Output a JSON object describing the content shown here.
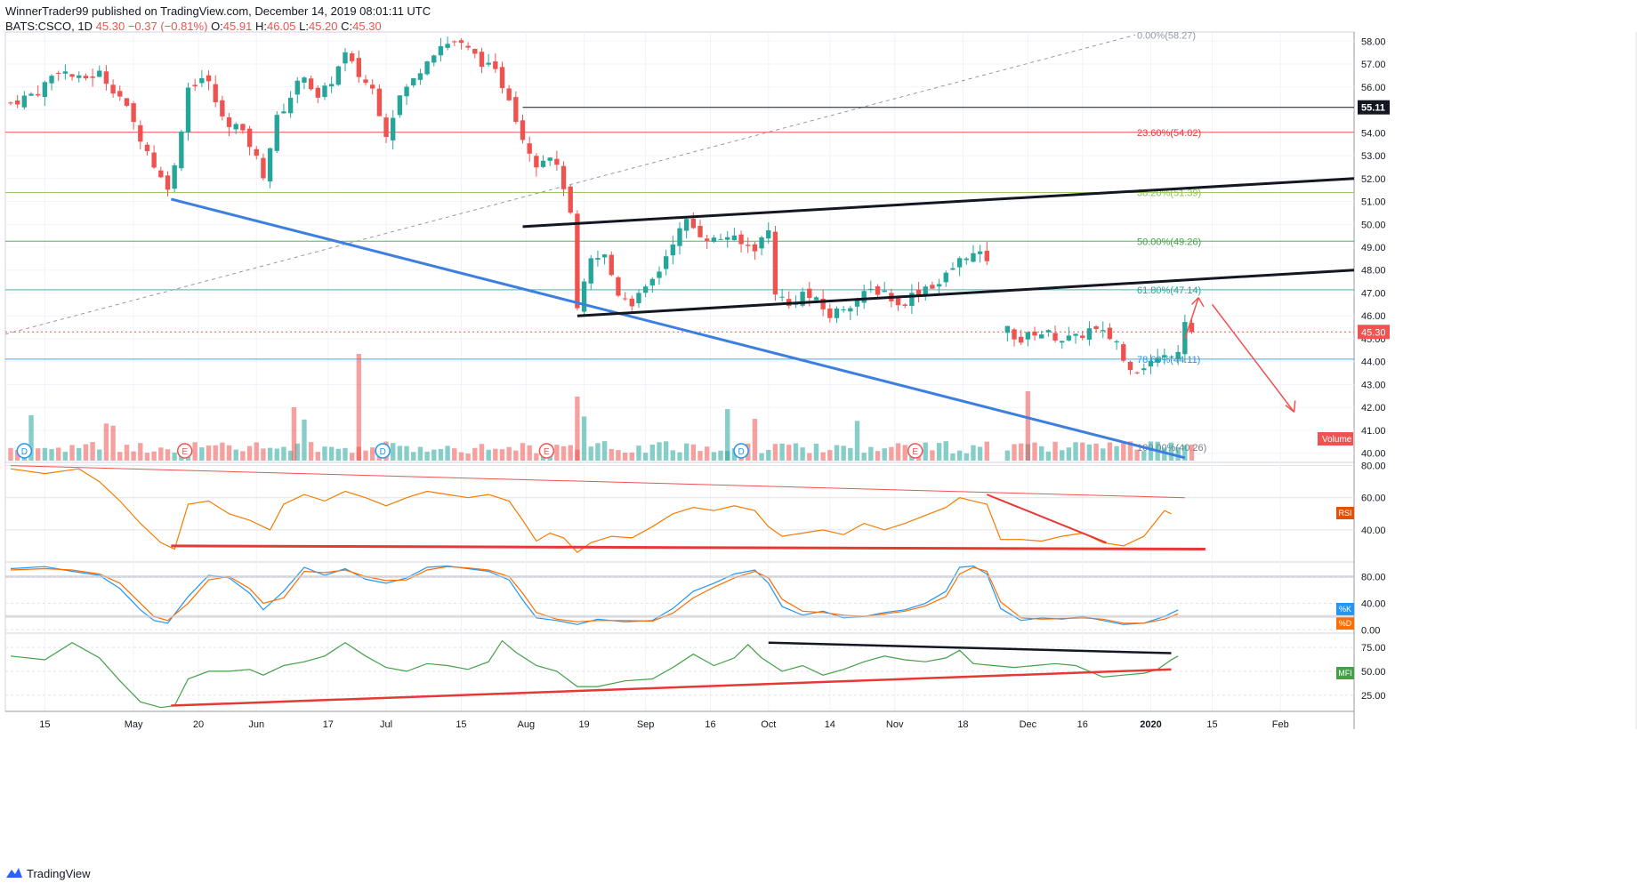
{
  "header": {
    "publisher": "WinnerTrader99 published on TradingView.com, December 14, 2019 08:01:11 UTC",
    "symbol": "BATS:CSCO, 1D",
    "last": "45.30",
    "change": "−0.37 (−0.81%)",
    "o_label": "O:",
    "o_value": "45.91",
    "h_label": "H:",
    "h_value": "46.05",
    "l_label": "L:",
    "l_value": "45.20",
    "c_label": "C:",
    "c_value": "45.30"
  },
  "brand": {
    "name": "TradingView",
    "icon": "tradingview-logo-icon"
  },
  "colors": {
    "up": "#26a69a",
    "down": "#ef5350",
    "grid": "#f0f3fa",
    "text": "#131722",
    "blue_line": "#3d7fe0"
  },
  "chart_data": {
    "type": "candlestick",
    "price_axis": {
      "range": [
        39.6,
        58.4
      ],
      "ticks": [
        "58.00",
        "57.00",
        "56.00",
        "55.00",
        "54.00",
        "53.00",
        "52.00",
        "51.00",
        "50.00",
        "49.00",
        "48.00",
        "47.00",
        "46.00",
        "45.00",
        "44.00",
        "43.00",
        "42.00",
        "41.00",
        "40.00"
      ],
      "last_price_label": "45.30",
      "marked_level_label": "55.11"
    },
    "x_axis": {
      "ticks": [
        "15",
        "May",
        "20",
        "Jun",
        "17",
        "Jul",
        "15",
        "Aug",
        "19",
        "Sep",
        "16",
        "Oct",
        "14",
        "Nov",
        "18",
        "Dec",
        "16",
        "2020",
        "15",
        "Feb"
      ]
    },
    "fibonacci": [
      {
        "label": "0.00%(58.27)",
        "price": 58.27,
        "color": "#9598a1"
      },
      {
        "label": "23.60%(54.02)",
        "price": 54.02,
        "color": "#e53935"
      },
      {
        "label": "38.20%(51.39)",
        "price": 51.39,
        "color": "#8bc34a"
      },
      {
        "label": "50.00%(49.26)",
        "price": 49.26,
        "color": "#43a047"
      },
      {
        "label": "61.80%(47.14)",
        "price": 47.14,
        "color": "#26a69a"
      },
      {
        "label": "78.60%(44.11)",
        "price": 44.11,
        "color": "#2196f3"
      },
      {
        "label": "100.00%(40.26)",
        "price": 40.26,
        "color": "#787b86"
      }
    ],
    "price_path": [
      [
        0,
        55.3
      ],
      [
        8,
        55.8
      ],
      [
        14,
        56.8
      ],
      [
        20,
        56.3
      ],
      [
        26,
        56.6
      ],
      [
        32,
        55.6
      ],
      [
        38,
        53.8
      ],
      [
        44,
        52.0
      ],
      [
        47,
        51.6
      ],
      [
        52,
        56.0
      ],
      [
        57,
        56.5
      ],
      [
        62,
        54.6
      ],
      [
        66,
        54.3
      ],
      [
        70,
        53.5
      ],
      [
        74,
        52.2
      ],
      [
        78,
        54.6
      ],
      [
        82,
        55.6
      ],
      [
        86,
        56.6
      ],
      [
        90,
        55.4
      ],
      [
        94,
        56.3
      ],
      [
        98,
        57.4
      ],
      [
        102,
        56.5
      ],
      [
        106,
        55.9
      ],
      [
        110,
        54.0
      ],
      [
        114,
        55.6
      ],
      [
        118,
        56.3
      ],
      [
        122,
        57.3
      ],
      [
        126,
        57.8
      ],
      [
        130,
        58.0
      ],
      [
        134,
        57.6
      ],
      [
        138,
        57.1
      ],
      [
        142,
        56.6
      ],
      [
        146,
        55.6
      ],
      [
        150,
        53.8
      ],
      [
        154,
        52.7
      ],
      [
        158,
        53.1
      ],
      [
        162,
        51.7
      ],
      [
        164,
        50.3
      ],
      [
        166,
        46.2
      ],
      [
        170,
        48.4
      ],
      [
        174,
        48.6
      ],
      [
        178,
        47.0
      ],
      [
        182,
        46.6
      ],
      [
        186,
        47.1
      ],
      [
        190,
        48.0
      ],
      [
        194,
        49.3
      ],
      [
        198,
        50.1
      ],
      [
        202,
        49.6
      ],
      [
        206,
        49.3
      ],
      [
        210,
        49.5
      ],
      [
        214,
        49.1
      ],
      [
        218,
        49.0
      ],
      [
        222,
        49.7
      ],
      [
        224,
        47.1
      ],
      [
        228,
        46.4
      ],
      [
        232,
        47.0
      ],
      [
        236,
        46.6
      ],
      [
        240,
        46.0
      ],
      [
        244,
        46.4
      ],
      [
        248,
        46.7
      ],
      [
        252,
        47.1
      ],
      [
        256,
        47.1
      ],
      [
        260,
        46.4
      ],
      [
        264,
        46.9
      ],
      [
        268,
        47.3
      ],
      [
        272,
        47.4
      ],
      [
        276,
        48.1
      ],
      [
        280,
        48.7
      ],
      [
        284,
        48.6
      ],
      [
        286,
        48.5
      ]
    ],
    "price_path_2": [
      [
        292,
        45.4
      ],
      [
        296,
        44.9
      ],
      [
        300,
        45.3
      ],
      [
        304,
        45.2
      ],
      [
        308,
        45.0
      ],
      [
        312,
        45.0
      ],
      [
        316,
        45.4
      ],
      [
        320,
        45.2
      ],
      [
        324,
        44.9
      ],
      [
        326,
        44.0
      ],
      [
        330,
        43.7
      ],
      [
        334,
        44.0
      ],
      [
        338,
        44.2
      ],
      [
        342,
        44.6
      ],
      [
        344,
        45.9
      ],
      [
        346,
        45.3
      ]
    ],
    "volume_label": "Volume",
    "event_markers": [
      {
        "label": "D",
        "kind": "dividend"
      },
      {
        "label": "E",
        "kind": "earnings"
      },
      {
        "label": "D",
        "kind": "dividend"
      },
      {
        "label": "E",
        "kind": "earnings"
      },
      {
        "label": "D",
        "kind": "dividend"
      },
      {
        "label": "E",
        "kind": "earnings"
      }
    ],
    "rsi": {
      "label": "RSI",
      "ticks": [
        "80.00",
        "60.00",
        "40.00"
      ],
      "range": [
        20,
        82
      ],
      "values": [
        [
          0,
          78
        ],
        [
          10,
          75
        ],
        [
          20,
          78
        ],
        [
          26,
          70
        ],
        [
          32,
          58
        ],
        [
          38,
          44
        ],
        [
          44,
          32
        ],
        [
          48,
          28
        ],
        [
          52,
          56
        ],
        [
          58,
          58
        ],
        [
          64,
          50
        ],
        [
          70,
          46
        ],
        [
          76,
          40
        ],
        [
          80,
          56
        ],
        [
          86,
          62
        ],
        [
          92,
          58
        ],
        [
          98,
          64
        ],
        [
          104,
          60
        ],
        [
          110,
          55
        ],
        [
          116,
          60
        ],
        [
          122,
          64
        ],
        [
          128,
          62
        ],
        [
          134,
          60
        ],
        [
          140,
          62
        ],
        [
          146,
          58
        ],
        [
          150,
          46
        ],
        [
          154,
          33
        ],
        [
          158,
          38
        ],
        [
          162,
          35
        ],
        [
          166,
          26
        ],
        [
          170,
          32
        ],
        [
          176,
          36
        ],
        [
          182,
          35
        ],
        [
          188,
          42
        ],
        [
          194,
          50
        ],
        [
          200,
          54
        ],
        [
          206,
          52
        ],
        [
          212,
          55
        ],
        [
          218,
          52
        ],
        [
          222,
          42
        ],
        [
          226,
          36
        ],
        [
          232,
          38
        ],
        [
          238,
          40
        ],
        [
          244,
          37
        ],
        [
          250,
          44
        ],
        [
          256,
          40
        ],
        [
          262,
          44
        ],
        [
          268,
          49
        ],
        [
          274,
          54
        ],
        [
          278,
          60
        ],
        [
          282,
          58
        ],
        [
          286,
          56
        ],
        [
          290,
          34
        ],
        [
          296,
          34
        ],
        [
          302,
          33
        ],
        [
          308,
          36
        ],
        [
          314,
          38
        ],
        [
          320,
          32
        ],
        [
          326,
          30
        ],
        [
          332,
          36
        ],
        [
          338,
          52
        ],
        [
          340,
          50
        ]
      ]
    },
    "stoch": {
      "k_label": "%K",
      "d_label": "%D",
      "ticks": [
        "80.00",
        "40.00",
        "0.00"
      ],
      "range": [
        -5,
        102
      ],
      "k": [
        [
          0,
          92
        ],
        [
          10,
          95
        ],
        [
          18,
          88
        ],
        [
          26,
          82
        ],
        [
          32,
          62
        ],
        [
          38,
          30
        ],
        [
          42,
          14
        ],
        [
          46,
          10
        ],
        [
          52,
          50
        ],
        [
          58,
          82
        ],
        [
          64,
          78
        ],
        [
          70,
          55
        ],
        [
          74,
          30
        ],
        [
          80,
          58
        ],
        [
          86,
          94
        ],
        [
          92,
          82
        ],
        [
          98,
          92
        ],
        [
          104,
          76
        ],
        [
          110,
          70
        ],
        [
          116,
          78
        ],
        [
          122,
          94
        ],
        [
          128,
          96
        ],
        [
          134,
          92
        ],
        [
          140,
          88
        ],
        [
          146,
          75
        ],
        [
          150,
          45
        ],
        [
          154,
          18
        ],
        [
          160,
          14
        ],
        [
          166,
          8
        ],
        [
          172,
          16
        ],
        [
          180,
          12
        ],
        [
          188,
          14
        ],
        [
          194,
          32
        ],
        [
          200,
          58
        ],
        [
          206,
          70
        ],
        [
          212,
          84
        ],
        [
          218,
          90
        ],
        [
          222,
          70
        ],
        [
          226,
          35
        ],
        [
          232,
          22
        ],
        [
          238,
          28
        ],
        [
          244,
          18
        ],
        [
          250,
          20
        ],
        [
          256,
          26
        ],
        [
          262,
          30
        ],
        [
          268,
          40
        ],
        [
          274,
          58
        ],
        [
          278,
          94
        ],
        [
          282,
          96
        ],
        [
          286,
          84
        ],
        [
          290,
          32
        ],
        [
          296,
          14
        ],
        [
          302,
          18
        ],
        [
          308,
          16
        ],
        [
          314,
          20
        ],
        [
          320,
          14
        ],
        [
          326,
          8
        ],
        [
          332,
          10
        ],
        [
          338,
          20
        ],
        [
          342,
          30
        ]
      ],
      "d": [
        [
          0,
          90
        ],
        [
          10,
          92
        ],
        [
          18,
          90
        ],
        [
          26,
          84
        ],
        [
          32,
          70
        ],
        [
          38,
          40
        ],
        [
          42,
          20
        ],
        [
          46,
          14
        ],
        [
          52,
          40
        ],
        [
          58,
          75
        ],
        [
          64,
          80
        ],
        [
          70,
          62
        ],
        [
          74,
          40
        ],
        [
          80,
          48
        ],
        [
          86,
          88
        ],
        [
          92,
          86
        ],
        [
          98,
          90
        ],
        [
          104,
          80
        ],
        [
          110,
          74
        ],
        [
          116,
          75
        ],
        [
          122,
          90
        ],
        [
          128,
          95
        ],
        [
          134,
          93
        ],
        [
          140,
          90
        ],
        [
          146,
          80
        ],
        [
          150,
          55
        ],
        [
          154,
          26
        ],
        [
          160,
          16
        ],
        [
          166,
          12
        ],
        [
          172,
          14
        ],
        [
          180,
          14
        ],
        [
          188,
          13
        ],
        [
          194,
          25
        ],
        [
          200,
          48
        ],
        [
          206,
          64
        ],
        [
          212,
          78
        ],
        [
          218,
          88
        ],
        [
          222,
          78
        ],
        [
          226,
          46
        ],
        [
          232,
          28
        ],
        [
          238,
          26
        ],
        [
          244,
          22
        ],
        [
          250,
          20
        ],
        [
          256,
          24
        ],
        [
          262,
          28
        ],
        [
          268,
          36
        ],
        [
          274,
          50
        ],
        [
          278,
          84
        ],
        [
          282,
          94
        ],
        [
          286,
          88
        ],
        [
          290,
          42
        ],
        [
          296,
          18
        ],
        [
          302,
          16
        ],
        [
          308,
          17
        ],
        [
          314,
          18
        ],
        [
          320,
          16
        ],
        [
          326,
          10
        ],
        [
          332,
          10
        ],
        [
          338,
          16
        ],
        [
          342,
          24
        ]
      ]
    },
    "mfi": {
      "label": "MFI",
      "ticks": [
        "75.00",
        "50.00",
        "25.00"
      ],
      "range": [
        8,
        90
      ],
      "values": [
        [
          0,
          66
        ],
        [
          10,
          62
        ],
        [
          18,
          80
        ],
        [
          26,
          64
        ],
        [
          32,
          40
        ],
        [
          38,
          18
        ],
        [
          44,
          12
        ],
        [
          48,
          14
        ],
        [
          52,
          42
        ],
        [
          58,
          50
        ],
        [
          64,
          50
        ],
        [
          70,
          52
        ],
        [
          74,
          46
        ],
        [
          80,
          56
        ],
        [
          86,
          60
        ],
        [
          92,
          66
        ],
        [
          98,
          80
        ],
        [
          104,
          66
        ],
        [
          110,
          54
        ],
        [
          116,
          50
        ],
        [
          122,
          58
        ],
        [
          128,
          56
        ],
        [
          134,
          52
        ],
        [
          140,
          60
        ],
        [
          144,
          82
        ],
        [
          148,
          70
        ],
        [
          154,
          56
        ],
        [
          160,
          50
        ],
        [
          166,
          34
        ],
        [
          172,
          34
        ],
        [
          180,
          40
        ],
        [
          188,
          42
        ],
        [
          194,
          54
        ],
        [
          200,
          68
        ],
        [
          206,
          56
        ],
        [
          212,
          64
        ],
        [
          216,
          78
        ],
        [
          220,
          64
        ],
        [
          226,
          50
        ],
        [
          232,
          56
        ],
        [
          238,
          46
        ],
        [
          244,
          52
        ],
        [
          250,
          60
        ],
        [
          256,
          66
        ],
        [
          262,
          62
        ],
        [
          268,
          60
        ],
        [
          274,
          64
        ],
        [
          278,
          72
        ],
        [
          282,
          58
        ],
        [
          288,
          56
        ],
        [
          294,
          54
        ],
        [
          300,
          56
        ],
        [
          306,
          58
        ],
        [
          312,
          56
        ],
        [
          320,
          44
        ],
        [
          326,
          46
        ],
        [
          332,
          48
        ],
        [
          336,
          52
        ],
        [
          340,
          62
        ],
        [
          342,
          66
        ]
      ]
    }
  }
}
